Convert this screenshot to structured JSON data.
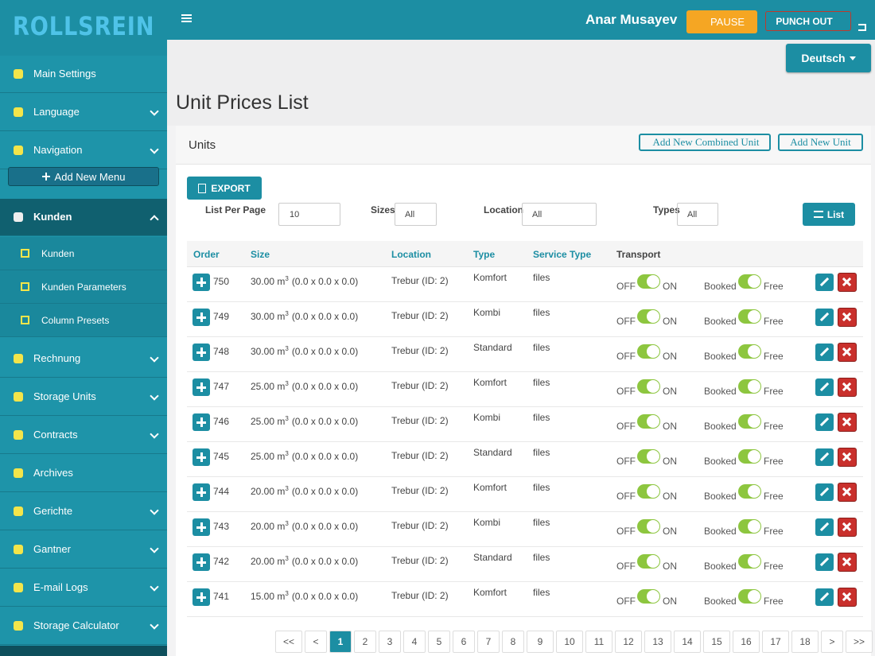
{
  "header": {
    "logo": "ROLLSREIN",
    "user": "Anar Musayev",
    "pause": "PAUSE",
    "punch_out": "PUNCH OUT",
    "language": "Deutsch"
  },
  "sidebar": {
    "items": [
      {
        "label": "Main Settings",
        "has_children": false
      },
      {
        "label": "Language",
        "has_children": true
      },
      {
        "label": "Navigation",
        "has_children": true
      },
      {
        "label": "Kunden",
        "has_children": true,
        "open": true,
        "children": [
          "Kunden",
          "Kunden Parameters",
          "Column Presets"
        ]
      },
      {
        "label": "Rechnung",
        "has_children": true
      },
      {
        "label": "Storage Units",
        "has_children": true
      },
      {
        "label": "Contracts",
        "has_children": true
      },
      {
        "label": "Archives",
        "has_children": false
      },
      {
        "label": "Gerichte",
        "has_children": true
      },
      {
        "label": "Gantner",
        "has_children": true
      },
      {
        "label": "E-mail Logs",
        "has_children": true
      },
      {
        "label": "Storage Calculator",
        "has_children": true
      }
    ],
    "add_menu": "Add New Menu"
  },
  "page": {
    "title": "Unit Prices List",
    "panel_title": "Units",
    "add_combined": "Add New Combined Unit",
    "add_unit": "Add New Unit",
    "export": "EXPORT",
    "filters": [
      {
        "label": "List Per Page",
        "value": "10"
      },
      {
        "label": "Sizes",
        "value": "All"
      },
      {
        "label": "Location",
        "value": "All"
      },
      {
        "label": "Types",
        "value": "All"
      }
    ],
    "list_button": "List"
  },
  "table": {
    "headers": [
      "Order",
      "Size",
      "Location",
      "Type",
      "Service Type",
      "Transport"
    ],
    "transport_labels": [
      "OFF",
      "ON"
    ],
    "booking_labels": [
      "Booked",
      "Free"
    ],
    "rows": [
      {
        "order": "750",
        "size": "30.00 m",
        "exp": "3",
        "dims": "(0.0 x 0.0 x 0.0)",
        "location": "Trebur (ID: 2)",
        "type": "Komfort",
        "service": "files"
      },
      {
        "order": "749",
        "size": "30.00 m",
        "exp": "3",
        "dims": "(0.0 x 0.0 x 0.0)",
        "location": "Trebur (ID: 2)",
        "type": "Kombi",
        "service": "files"
      },
      {
        "order": "748",
        "size": "30.00 m",
        "exp": "3",
        "dims": "(0.0 x 0.0 x 0.0)",
        "location": "Trebur (ID: 2)",
        "type": "Standard",
        "service": "files"
      },
      {
        "order": "747",
        "size": "25.00 m",
        "exp": "3",
        "dims": "(0.0 x 0.0 x 0.0)",
        "location": "Trebur (ID: 2)",
        "type": "Komfort",
        "service": "files"
      },
      {
        "order": "746",
        "size": "25.00 m",
        "exp": "3",
        "dims": "(0.0 x 0.0 x 0.0)",
        "location": "Trebur (ID: 2)",
        "type": "Kombi",
        "service": "files"
      },
      {
        "order": "745",
        "size": "25.00 m",
        "exp": "3",
        "dims": "(0.0 x 0.0 x 0.0)",
        "location": "Trebur (ID: 2)",
        "type": "Standard",
        "service": "files"
      },
      {
        "order": "744",
        "size": "20.00 m",
        "exp": "3",
        "dims": "(0.0 x 0.0 x 0.0)",
        "location": "Trebur (ID: 2)",
        "type": "Komfort",
        "service": "files"
      },
      {
        "order": "743",
        "size": "20.00 m",
        "exp": "3",
        "dims": "(0.0 x 0.0 x 0.0)",
        "location": "Trebur (ID: 2)",
        "type": "Kombi",
        "service": "files"
      },
      {
        "order": "742",
        "size": "20.00 m",
        "exp": "3",
        "dims": "(0.0 x 0.0 x 0.0)",
        "location": "Trebur (ID: 2)",
        "type": "Standard",
        "service": "files"
      },
      {
        "order": "741",
        "size": "15.00 m",
        "exp": "3",
        "dims": "(0.0 x 0.0 x 0.0)",
        "location": "Trebur (ID: 2)",
        "type": "Komfort",
        "service": "files"
      }
    ]
  },
  "pagination": {
    "pages": [
      "<<",
      "<",
      "1",
      "2",
      "3",
      "4",
      "5",
      "6",
      "7",
      "8",
      "9",
      "10",
      "11",
      "12",
      "13",
      "14",
      "15",
      "16",
      "17",
      "18",
      ">",
      ">>"
    ],
    "active": "1"
  }
}
